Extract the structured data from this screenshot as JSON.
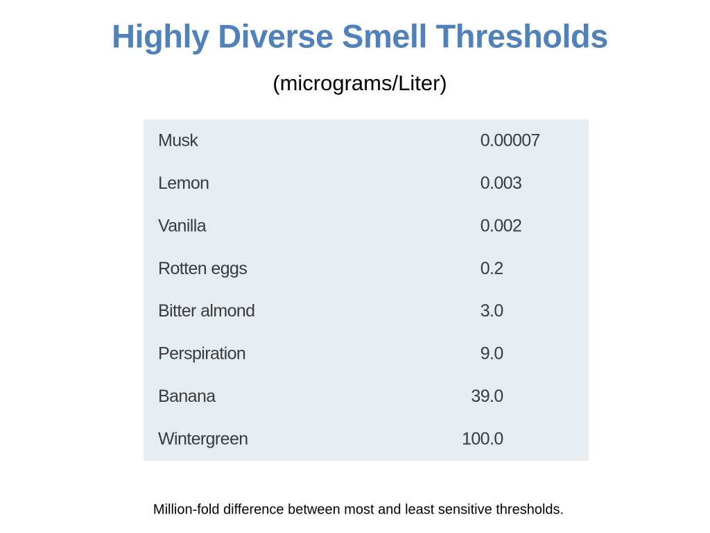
{
  "header": {
    "title": "Highly Diverse Smell Thresholds",
    "subtitle": "(micrograms/Liter)"
  },
  "table": {
    "rows": [
      [
        "Musk",
        "0.00007"
      ],
      [
        "Lemon",
        "0.003"
      ],
      [
        "Vanilla",
        "0.002"
      ],
      [
        "Rotten eggs",
        "0.2"
      ],
      [
        "Bitter almond",
        "3.0"
      ],
      [
        "Perspiration",
        "9.0"
      ],
      [
        "Banana",
        "39.0"
      ],
      [
        "Wintergreen",
        "100.0"
      ]
    ]
  },
  "footer": {
    "note": "Million-fold difference between most and least sensitive thresholds."
  }
}
